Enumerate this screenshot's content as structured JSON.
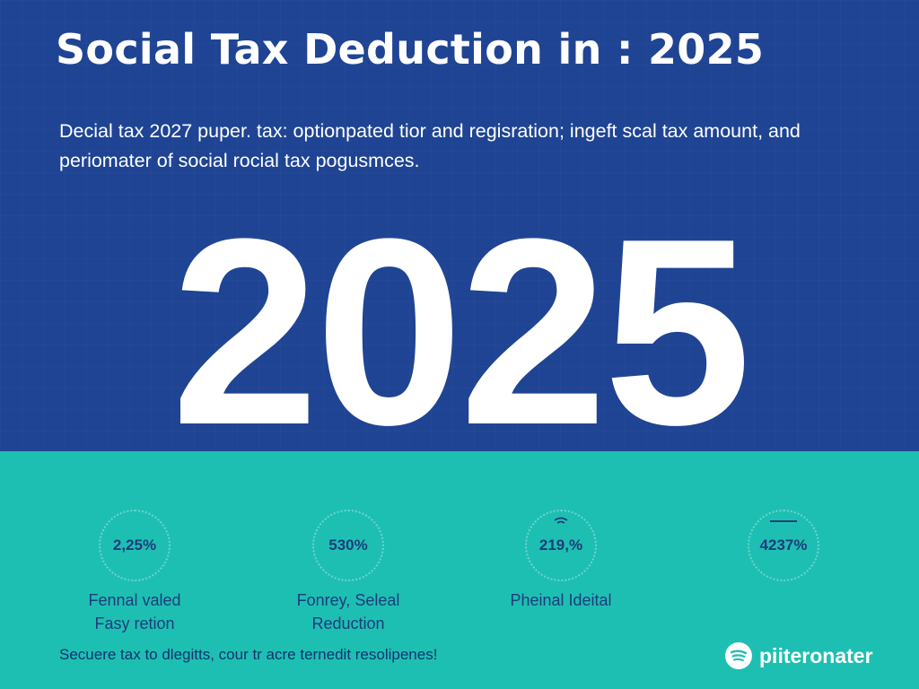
{
  "header": {
    "title": "Social Tax Deduction in : 2025",
    "description": "Decial tax 2027 puper. tax: optionpated tior and regisration; ingeft scal tax amount, and periomater of social rocial tax pogusmces."
  },
  "hero": {
    "year": "2025"
  },
  "stats": [
    {
      "value": "2,25%",
      "label_line1": "Fennal valed",
      "label_line2": "Fasy retion",
      "icon": "none"
    },
    {
      "value": "530%",
      "label_line1": "Fonrey, Seleal",
      "label_line2": "Reduction",
      "icon": "none"
    },
    {
      "value": "219,%",
      "label_line1": "Pheinal Ideital",
      "label_line2": "",
      "icon": "wifi-icon"
    },
    {
      "value": "4237%",
      "label_line1": "",
      "label_line2": "",
      "icon": "dash-icon"
    }
  ],
  "footer": {
    "text": "Secuere tax to dlegitts, cour tr acre ternedit resolipenes!",
    "brand_name": "piiteronater",
    "brand_icon": "spotify-like-logo-icon"
  },
  "colors": {
    "top_background": "#1f4493",
    "bottom_background": "#1ebfb3",
    "stat_text": "#1d3d7a",
    "text_light": "#ffffff"
  }
}
